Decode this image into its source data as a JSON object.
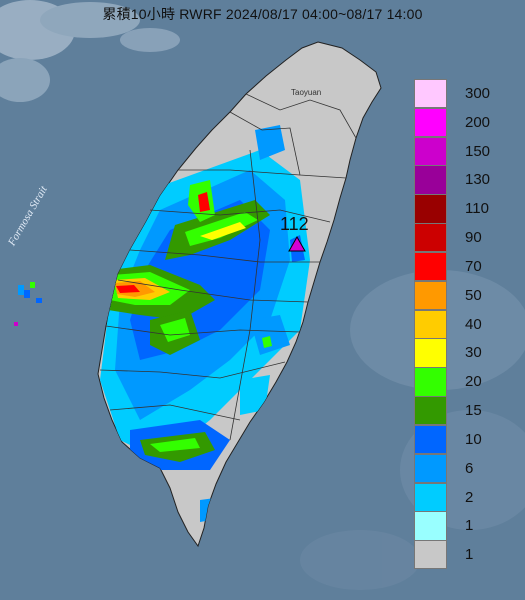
{
  "title": "累積10小時 RWRF 2024/08/17 04:00~08/17 14:00",
  "map_labels": {
    "strait": "Formosa Strait",
    "city": "Taoyuan"
  },
  "station": {
    "value_label": "112",
    "marker_color": "#d400d4"
  },
  "legend": {
    "items": [
      {
        "label": "300",
        "color": "#ffc8ff"
      },
      {
        "label": "200",
        "color": "#ff00ff"
      },
      {
        "label": "150",
        "color": "#cc00cc"
      },
      {
        "label": "130",
        "color": "#990099"
      },
      {
        "label": "110",
        "color": "#990000"
      },
      {
        "label": "90",
        "color": "#cc0000"
      },
      {
        "label": "70",
        "color": "#ff0000"
      },
      {
        "label": "50",
        "color": "#ff9900"
      },
      {
        "label": "40",
        "color": "#ffcc00"
      },
      {
        "label": "30",
        "color": "#ffff00"
      },
      {
        "label": "20",
        "color": "#33ff00"
      },
      {
        "label": "15",
        "color": "#339900"
      },
      {
        "label": "10",
        "color": "#0066ff"
      },
      {
        "label": "6",
        "color": "#0099ff"
      },
      {
        "label": "2",
        "color": "#00ccff"
      },
      {
        "label": "1",
        "color": "#99ffff"
      },
      {
        "label": "1",
        "color": "#c8c8c8"
      }
    ]
  },
  "colors": {
    "sea": "#5f7f9b",
    "land": "#c8c8c8"
  }
}
